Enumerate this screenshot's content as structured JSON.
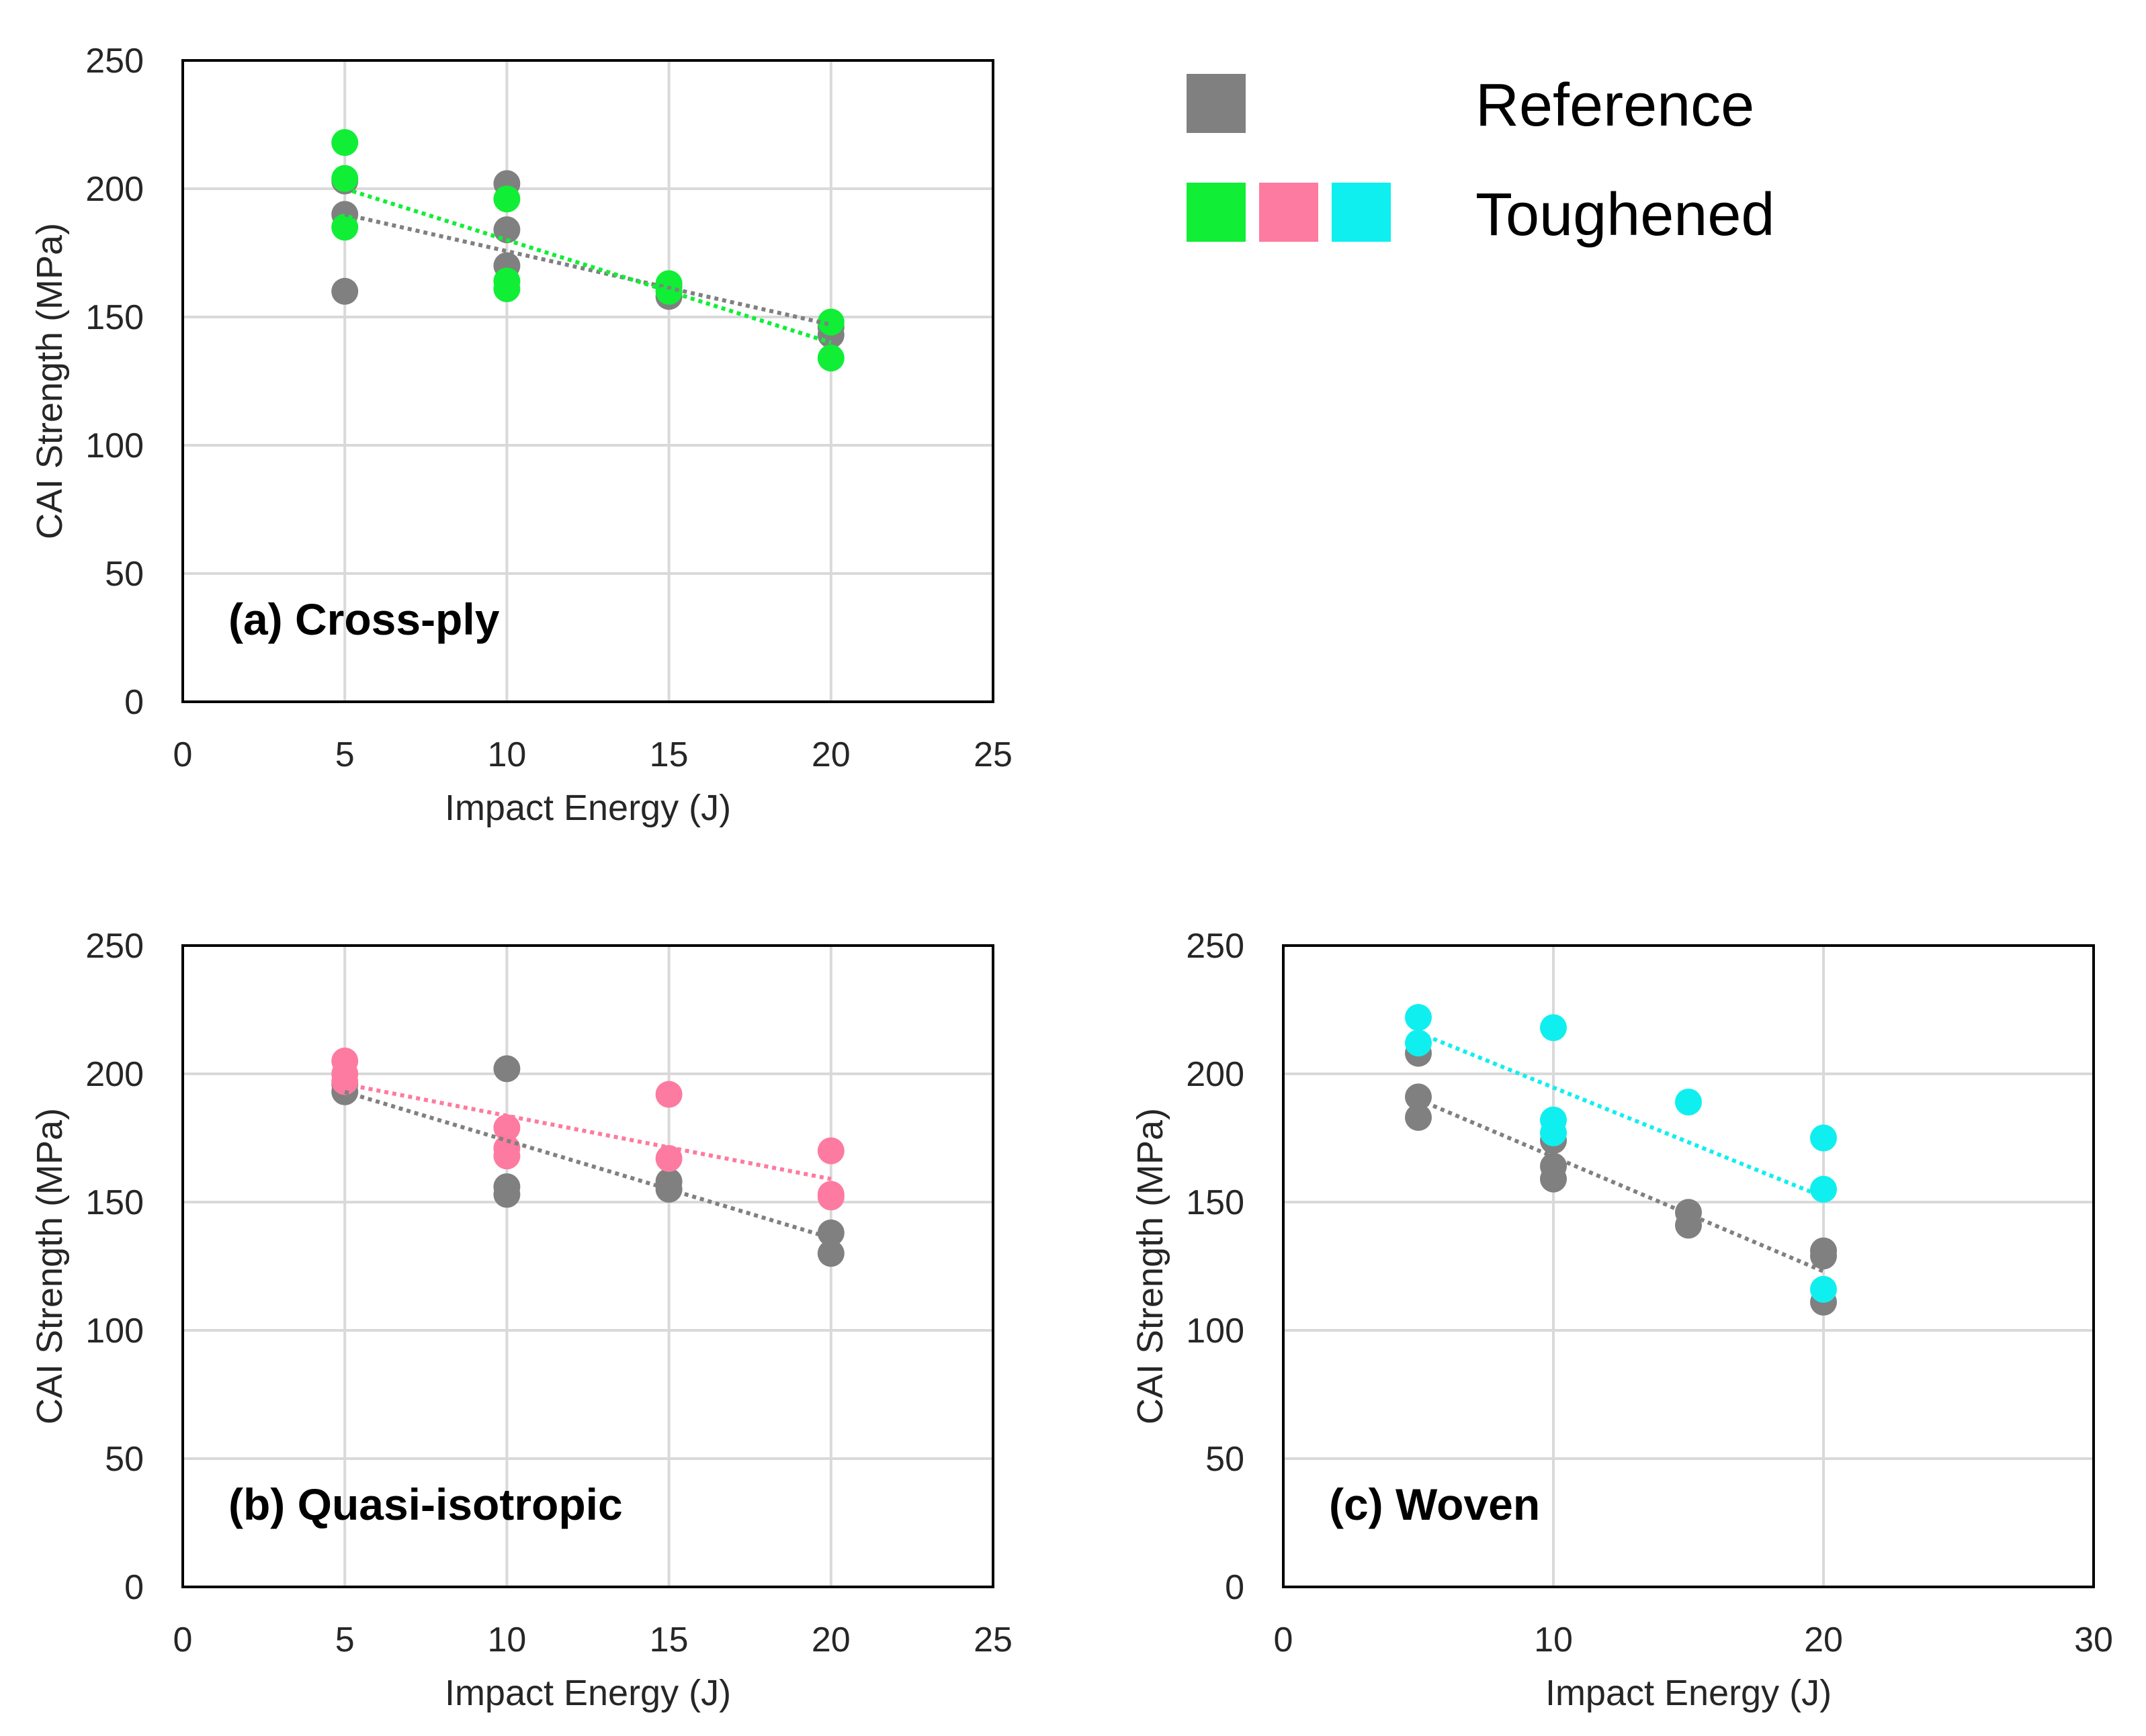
{
  "colors": {
    "reference": "#808080",
    "cross_ply": "#11ee36",
    "quasi_isotropic": "#fd7ba0",
    "woven": "#10efef",
    "grid": "#d9d9d9",
    "axis": "#000000"
  },
  "legend": {
    "reference_label": "Reference",
    "toughened_label": "Toughened"
  },
  "chart_data": [
    {
      "type": "scatter",
      "panel_label": "(a) Cross-ply",
      "xlabel": "Impact Energy (J)",
      "ylabel": "CAI Strength (MPa)",
      "xlim": [
        0,
        25
      ],
      "ylim": [
        0,
        250
      ],
      "xticks": [
        0,
        5,
        10,
        15,
        20,
        25
      ],
      "yticks": [
        0,
        50,
        100,
        150,
        200,
        250
      ],
      "grid": true,
      "series": [
        {
          "name": "Reference",
          "color_key": "reference",
          "points": [
            [
              5,
              203
            ],
            [
              5,
              190
            ],
            [
              5,
              160
            ],
            [
              10,
              202
            ],
            [
              10,
              184
            ],
            [
              10,
              170
            ],
            [
              15,
              162
            ],
            [
              15,
              158
            ],
            [
              20,
              146
            ],
            [
              20,
              143
            ]
          ],
          "trend": [
            [
              5,
              190
            ],
            [
              20,
              147
            ]
          ]
        },
        {
          "name": "Toughened",
          "color_key": "cross_ply",
          "points": [
            [
              5,
              218
            ],
            [
              5,
              204
            ],
            [
              5,
              185
            ],
            [
              10,
              196
            ],
            [
              10,
              164
            ],
            [
              10,
              161
            ],
            [
              15,
              163
            ],
            [
              15,
              160
            ],
            [
              20,
              148
            ],
            [
              20,
              134
            ]
          ],
          "trend": [
            [
              5,
              200
            ],
            [
              20,
              140
            ]
          ]
        }
      ]
    },
    {
      "type": "scatter",
      "panel_label": "(b) Quasi-isotropic",
      "xlabel": "Impact Energy (J)",
      "ylabel": "CAI Strength (MPa)",
      "xlim": [
        0,
        25
      ],
      "ylim": [
        0,
        250
      ],
      "xticks": [
        0,
        5,
        10,
        15,
        20,
        25
      ],
      "yticks": [
        0,
        50,
        100,
        150,
        200,
        250
      ],
      "grid": true,
      "series": [
        {
          "name": "Reference",
          "color_key": "reference",
          "points": [
            [
              5,
              193
            ],
            [
              5,
              196
            ],
            [
              10,
              202
            ],
            [
              10,
              156
            ],
            [
              10,
              153
            ],
            [
              15,
              158
            ],
            [
              15,
              155
            ],
            [
              20,
              138
            ],
            [
              20,
              130
            ]
          ],
          "trend": [
            [
              5,
              193
            ],
            [
              20,
              136
            ]
          ]
        },
        {
          "name": "Toughened",
          "color_key": "quasi_isotropic",
          "points": [
            [
              5,
              205
            ],
            [
              5,
              200
            ],
            [
              5,
              197
            ],
            [
              10,
              179
            ],
            [
              10,
              171
            ],
            [
              10,
              168
            ],
            [
              15,
              192
            ],
            [
              15,
              167
            ],
            [
              20,
              170
            ],
            [
              20,
              153
            ],
            [
              20,
              152
            ]
          ],
          "trend": [
            [
              5,
              196
            ],
            [
              20,
              159
            ]
          ]
        }
      ]
    },
    {
      "type": "scatter",
      "panel_label": "(c) Woven",
      "xlabel": "Impact Energy (J)",
      "ylabel": "CAI Strength (MPa)",
      "xlim": [
        0,
        30
      ],
      "ylim": [
        0,
        250
      ],
      "xticks": [
        0,
        10,
        20,
        30
      ],
      "yticks": [
        0,
        50,
        100,
        150,
        200,
        250
      ],
      "grid": true,
      "series": [
        {
          "name": "Reference",
          "color_key": "reference",
          "points": [
            [
              5,
              208
            ],
            [
              5,
              191
            ],
            [
              5,
              183
            ],
            [
              10,
              174
            ],
            [
              10,
              164
            ],
            [
              10,
              159
            ],
            [
              15,
              146
            ],
            [
              15,
              141
            ],
            [
              20,
              131
            ],
            [
              20,
              129
            ],
            [
              20,
              111
            ]
          ],
          "trend": [
            [
              5,
              190
            ],
            [
              20,
              123
            ]
          ]
        },
        {
          "name": "Toughened",
          "color_key": "woven",
          "points": [
            [
              5,
              222
            ],
            [
              5,
              212
            ],
            [
              10,
              218
            ],
            [
              10,
              182
            ],
            [
              10,
              177
            ],
            [
              15,
              189
            ],
            [
              20,
              175
            ],
            [
              20,
              155
            ],
            [
              20,
              116
            ]
          ],
          "trend": [
            [
              5,
              216
            ],
            [
              20,
              152
            ]
          ]
        }
      ]
    }
  ]
}
